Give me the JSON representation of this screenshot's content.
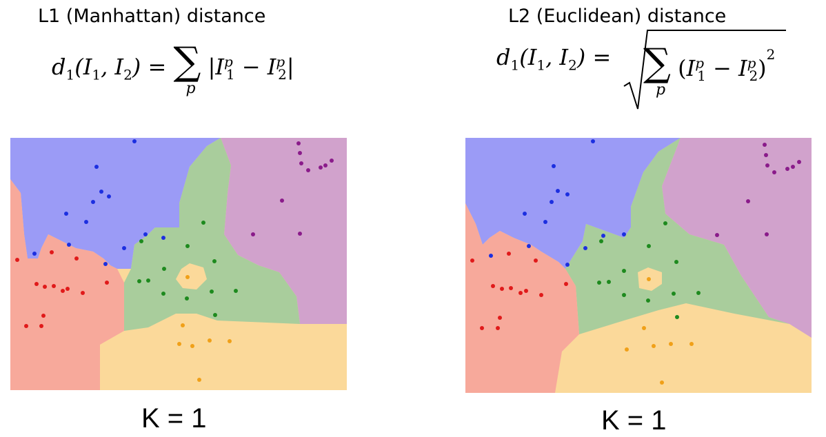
{
  "left": {
    "title": "L1 (Manhattan) distance",
    "formula": {
      "lhs": "d",
      "lhs_sub": "1",
      "args": "(I",
      "sum_sub": "p",
      "caption": "K = 1"
    }
  },
  "right": {
    "title": "L2 (Euclidean) distance",
    "formula": {
      "lhs": "d",
      "lhs_sub": "1",
      "sum_sub": "p",
      "exponent": "2",
      "caption": "K = 1"
    }
  },
  "colors": {
    "blue_region": "#9b9bf6",
    "green_region": "#a9cd9c",
    "purple_region": "#d1a2cc",
    "red_region": "#f7a99b",
    "orange_region": "#fbd99a",
    "blue_point": "#1c2fe0",
    "green_point": "#1e8a1e",
    "purple_point": "#8a1b8a",
    "red_point": "#e01a1a",
    "orange_point": "#f0a018"
  }
}
